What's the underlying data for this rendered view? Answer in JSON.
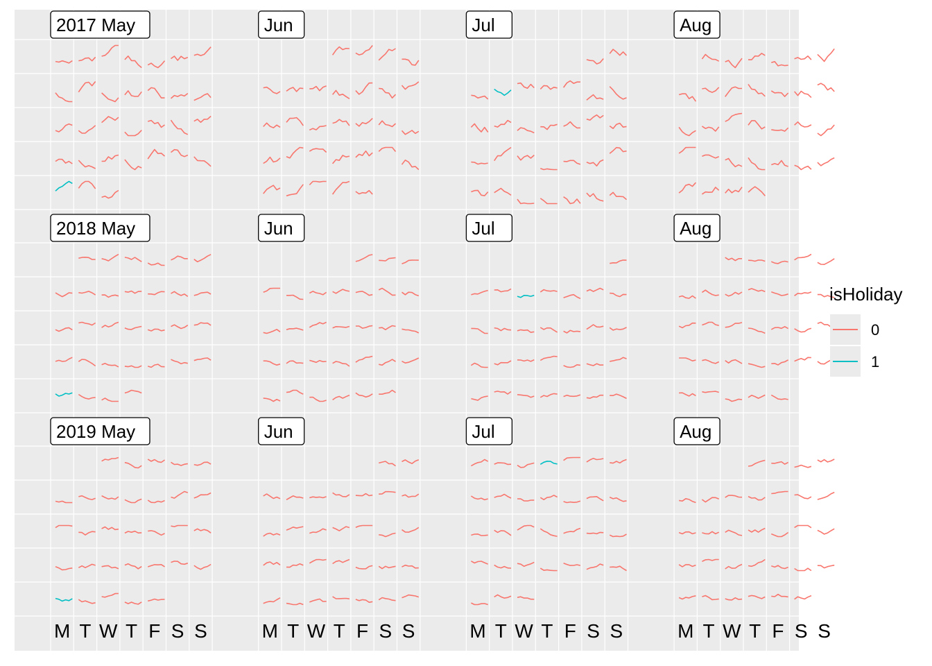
{
  "chart_data": {
    "type": "line",
    "description_type": "calendar",
    "years": [
      "2017",
      "2018",
      "2019"
    ],
    "months": [
      "May",
      "Jun",
      "Jul",
      "Aug"
    ],
    "strip_labels": [
      [
        "2017 May",
        "Jun",
        "Jul",
        "Aug"
      ],
      [
        "2018 May",
        "Jun",
        "Jul",
        "Aug"
      ],
      [
        "2019 May",
        "Jun",
        "Jul",
        "Aug"
      ]
    ],
    "weekday_labels": [
      "M",
      "T",
      "W",
      "T",
      "F",
      "S",
      "S"
    ],
    "legend": {
      "title": "isHoliday",
      "position": "right",
      "items": [
        {
          "label": "0",
          "color": "#F8766D"
        },
        {
          "label": "1",
          "color": "#00BFC4"
        }
      ]
    },
    "colors": {
      "non_holiday": "#F8766D",
      "holiday": "#00BFC4",
      "panel_background": "#EBEBEB",
      "grid": "#FFFFFF"
    },
    "holidays": [
      "2017-05-29",
      "2017-07-04",
      "2018-05-28",
      "2018-07-04",
      "2019-05-27",
      "2019-07-04"
    ],
    "grid": true
  }
}
